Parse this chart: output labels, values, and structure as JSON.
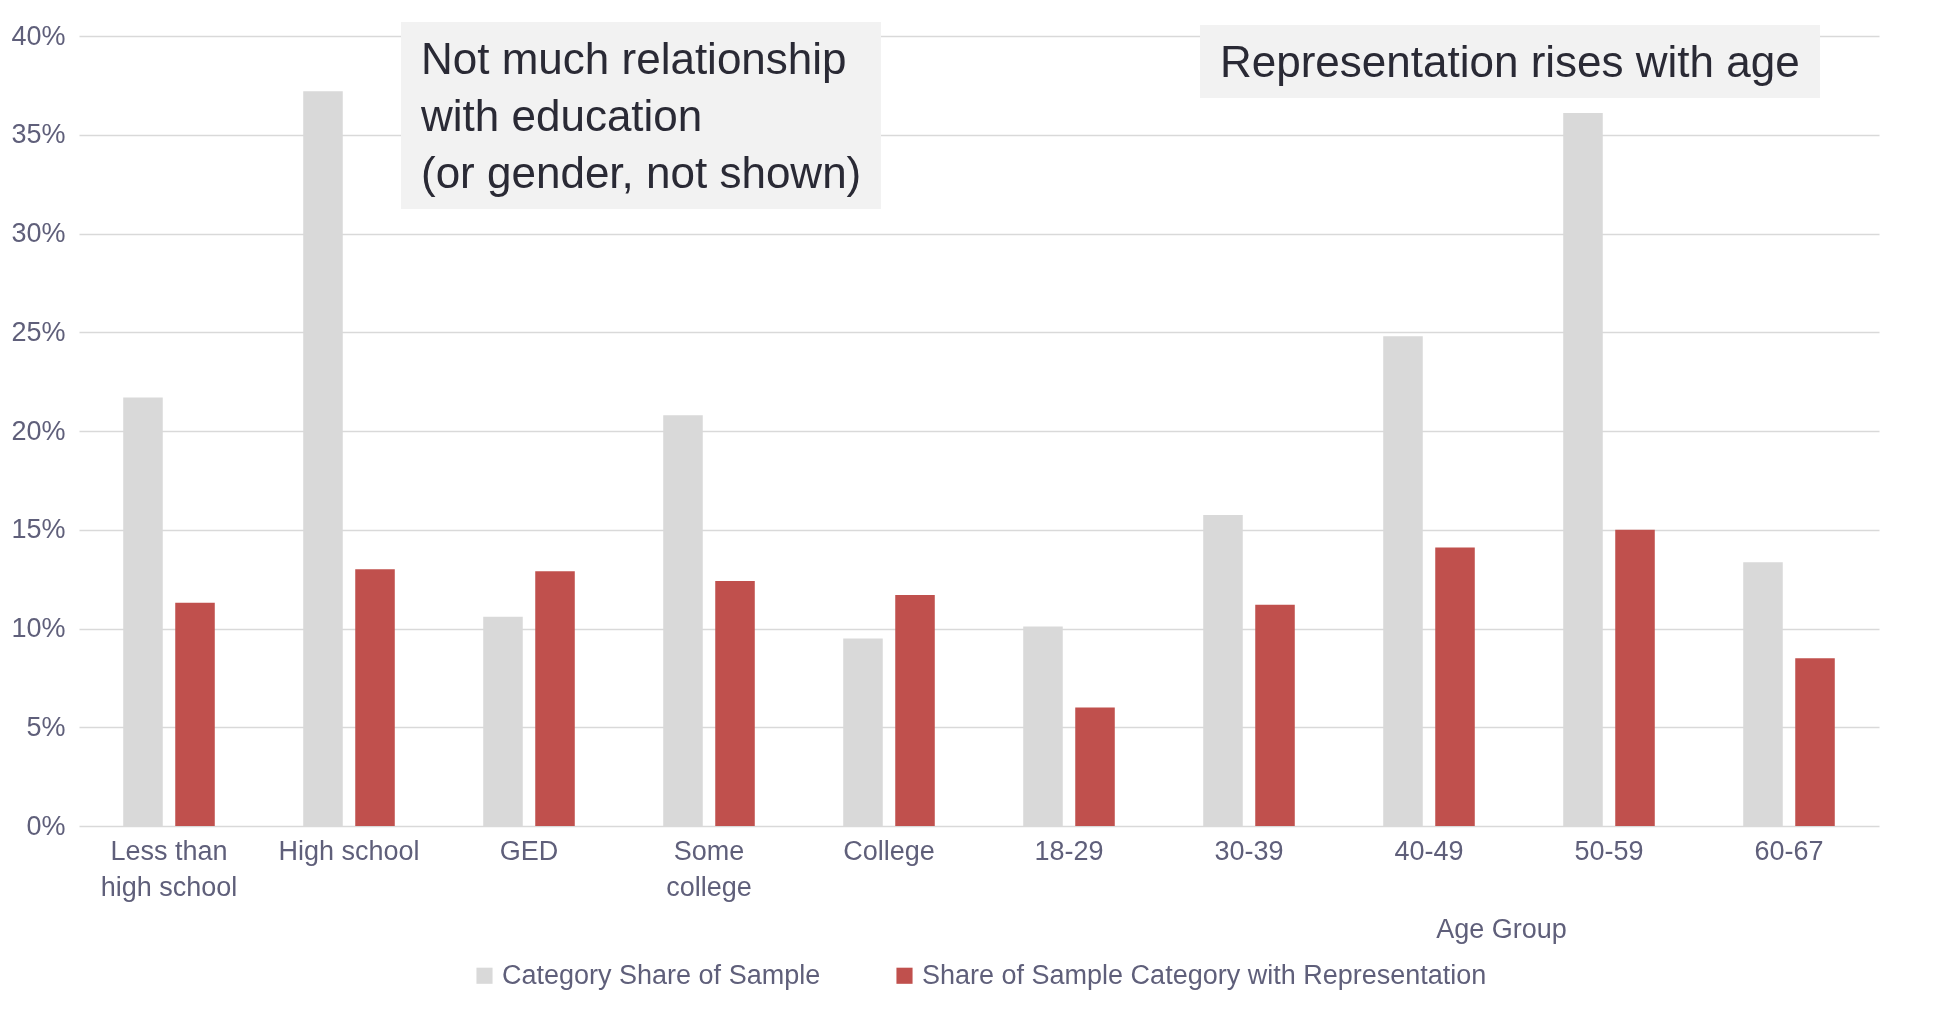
{
  "chart_data": {
    "type": "bar",
    "categories": [
      "Less than high school",
      "High school",
      "GED",
      "Some college",
      "College",
      "18-29",
      "30-39",
      "40-49",
      "50-59",
      "60-67"
    ],
    "series": [
      {
        "name": "Category Share of Sample",
        "color": "#d9d9d9",
        "values": [
          21.7,
          37.2,
          10.6,
          20.8,
          9.5,
          10.1,
          15.75,
          24.8,
          36.1,
          13.35
        ]
      },
      {
        "name": "Share of Sample Category with Representation",
        "color": "#c0504d",
        "values": [
          11.3,
          13.0,
          12.9,
          12.4,
          11.7,
          6.0,
          11.2,
          14.1,
          15.0,
          8.5
        ]
      }
    ],
    "xlabel": "Age Group",
    "ylim": [
      0,
      40
    ],
    "yticks": [
      {
        "value": 0,
        "label": "0%"
      },
      {
        "value": 5,
        "label": "5%"
      },
      {
        "value": 10,
        "label": "10%"
      },
      {
        "value": 15,
        "label": "15%"
      },
      {
        "value": 20,
        "label": "20%"
      },
      {
        "value": 25,
        "label": "25%"
      },
      {
        "value": 30,
        "label": "30%"
      },
      {
        "value": 35,
        "label": "35%"
      },
      {
        "value": 40,
        "label": "40%"
      }
    ],
    "annotations": [
      "Not much relationship\nwith education\n(or gender, not shown)",
      "Representation rises with age"
    ],
    "grid": "y",
    "legend": "bottom"
  }
}
